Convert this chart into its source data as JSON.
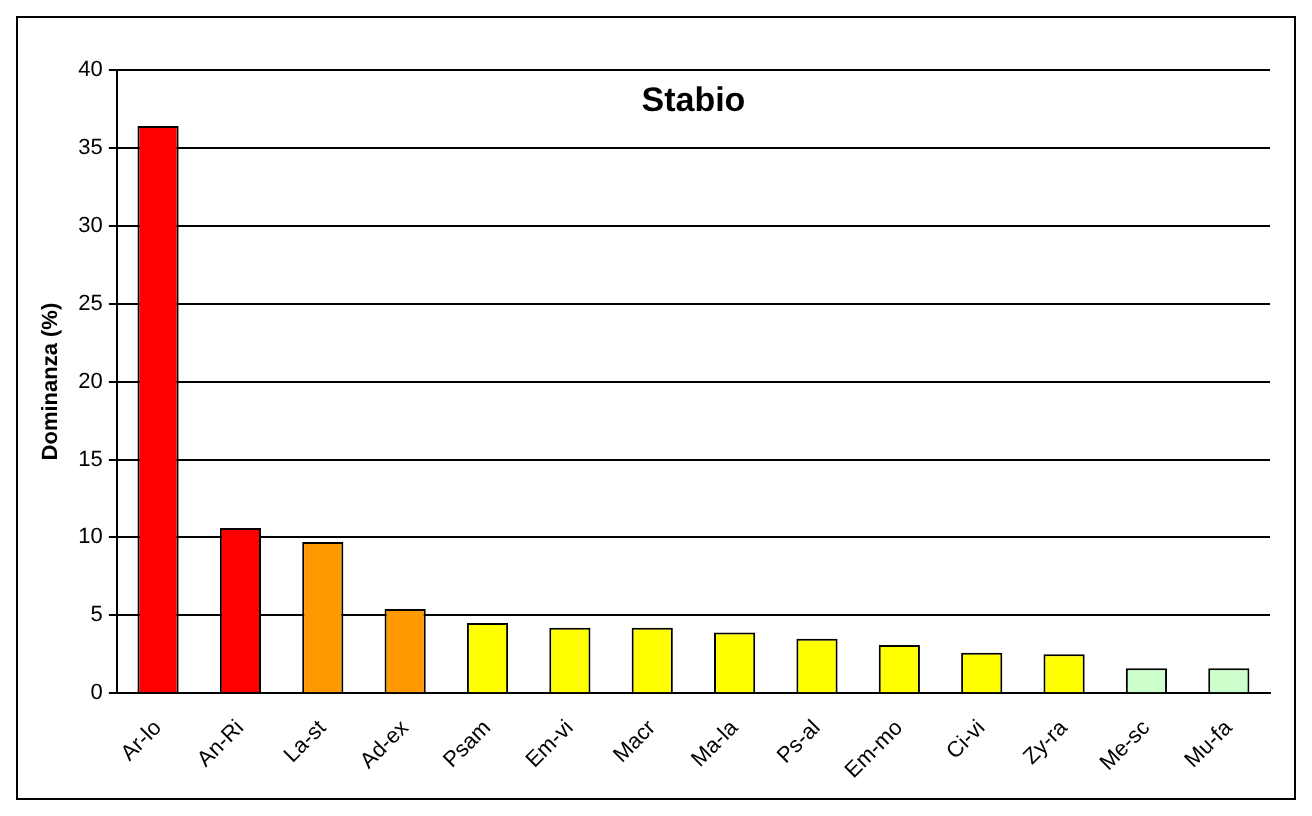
{
  "chart_data": {
    "type": "bar",
    "title": "Stabio",
    "ylabel": "Dominanza (%)",
    "categories": [
      "Ar-lo",
      "An-Ri",
      "La-st",
      "Ad-ex",
      "Psam",
      "Em-vi",
      "Macr",
      "Ma-la",
      "Ps-al",
      "Em-mo",
      "Ci-vi",
      "Zy-ra",
      "Me-sc",
      "Mu-fa"
    ],
    "values": [
      36.4,
      10.6,
      9.7,
      5.4,
      4.5,
      4.2,
      4.2,
      3.9,
      3.5,
      3.1,
      2.6,
      2.5,
      1.6,
      1.6
    ],
    "colors": [
      "#ff0000",
      "#ff0000",
      "#ff9900",
      "#ff9900",
      "#ffff00",
      "#ffff00",
      "#ffff00",
      "#ffff00",
      "#ffff00",
      "#ffff00",
      "#ffff00",
      "#ffff00",
      "#ccffcc",
      "#ccffcc"
    ],
    "ylim": [
      0,
      40
    ],
    "yticks": [
      0,
      5,
      10,
      15,
      20,
      25,
      30,
      35,
      40
    ],
    "grid": "y",
    "legend": false
  }
}
